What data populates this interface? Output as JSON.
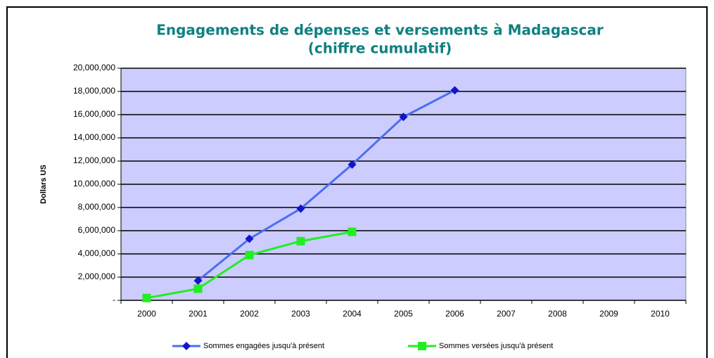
{
  "chart_data": {
    "type": "line",
    "title": "Engagements de dépenses et versements à Madagascar",
    "subtitle": "(chiffre cumulatif)",
    "y_label": "Dollars US",
    "categories": [
      "2000",
      "2001",
      "2002",
      "2003",
      "2004",
      "2005",
      "2006",
      "2007",
      "2008",
      "2009",
      "2010"
    ],
    "series": [
      {
        "name": "Sommes engagées jusqu'à présent",
        "color": "#4a6ff0",
        "marker_color": "#1414c8",
        "marker": "diamond",
        "values": [
          null,
          1700000,
          5300000,
          7900000,
          11700000,
          15800000,
          18100000,
          null,
          null,
          null,
          null
        ]
      },
      {
        "name": "Sommes versées jusqu'à présent",
        "color": "#22ee22",
        "marker_color": "#22ee22",
        "marker": "square",
        "values": [
          200000,
          1000000,
          3900000,
          5100000,
          5900000,
          null,
          null,
          null,
          null,
          null,
          null
        ]
      }
    ],
    "ylim": [
      0,
      20000000
    ],
    "yticks": [
      {
        "value": 0,
        "label": "-"
      },
      {
        "value": 2000000,
        "label": "2,000,000"
      },
      {
        "value": 4000000,
        "label": "4,000,000"
      },
      {
        "value": 6000000,
        "label": "6,000,000"
      },
      {
        "value": 8000000,
        "label": "8,000,000"
      },
      {
        "value": 10000000,
        "label": "10,000,000"
      },
      {
        "value": 12000000,
        "label": "12,000,000"
      },
      {
        "value": 14000000,
        "label": "14,000,000"
      },
      {
        "value": 16000000,
        "label": "16,000,000"
      },
      {
        "value": 18000000,
        "label": "18,000,000"
      },
      {
        "value": 20000000,
        "label": "20,000,000"
      }
    ],
    "grid": true,
    "plot_background": "#ccccff",
    "legend": "bottom"
  }
}
